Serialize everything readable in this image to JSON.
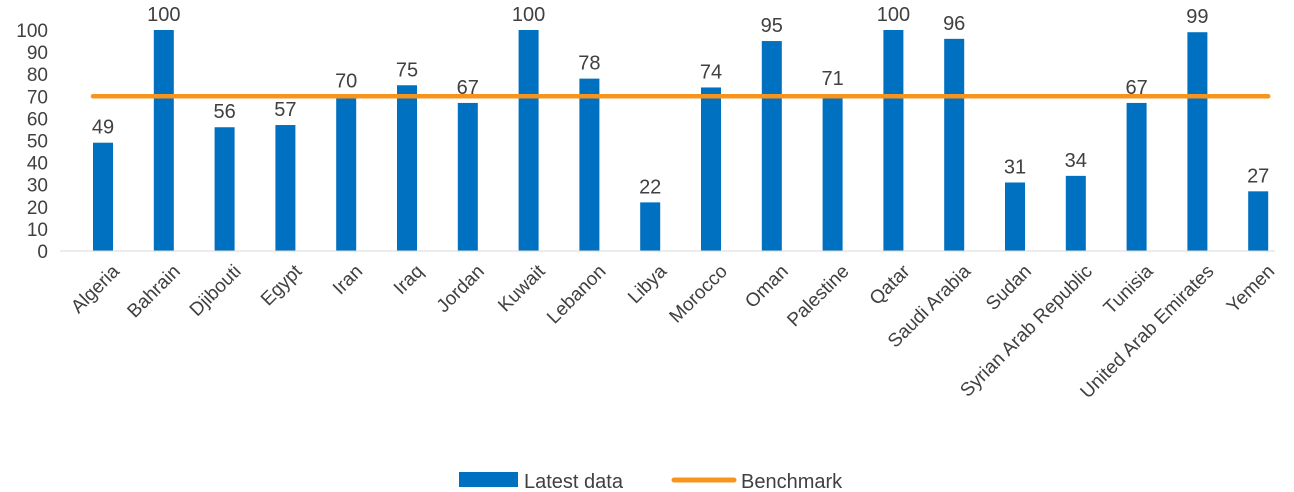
{
  "chart_data": {
    "type": "bar",
    "categories": [
      "Algeria",
      "Bahrain",
      "Djibouti",
      "Egypt",
      "Iran",
      "Iraq",
      "Jordan",
      "Kuwait",
      "Lebanon",
      "Libya",
      "Morocco",
      "Oman",
      "Palestine",
      "Qatar",
      "Saudi Arabia",
      "Sudan",
      "Syrian Arab Republic",
      "Tunisia",
      "United Arab Emirates",
      "Yemen"
    ],
    "series": [
      {
        "name": "Latest data",
        "type": "bar",
        "color": "#0070C0",
        "values": [
          49,
          100,
          56,
          57,
          70,
          75,
          67,
          100,
          78,
          22,
          74,
          95,
          71,
          100,
          96,
          31,
          34,
          67,
          99,
          27
        ]
      },
      {
        "name": "Benchmark",
        "type": "line",
        "color": "#F7941D",
        "values": [
          70,
          70,
          70,
          70,
          70,
          70,
          70,
          70,
          70,
          70,
          70,
          70,
          70,
          70,
          70,
          70,
          70,
          70,
          70,
          70
        ]
      }
    ],
    "data_labels": [
      "49",
      "100",
      "56",
      "57",
      "70",
      "75",
      "67",
      "100",
      "78",
      "22",
      "74",
      "95",
      "71",
      "100",
      "96",
      "31",
      "34",
      "67",
      "99",
      "27"
    ],
    "y_ticks": [
      "0",
      "10",
      "20",
      "30",
      "40",
      "50",
      "60",
      "70",
      "80",
      "90",
      "100"
    ],
    "ylim": [
      0,
      100
    ],
    "grid": false,
    "legend": "bottom-center"
  }
}
